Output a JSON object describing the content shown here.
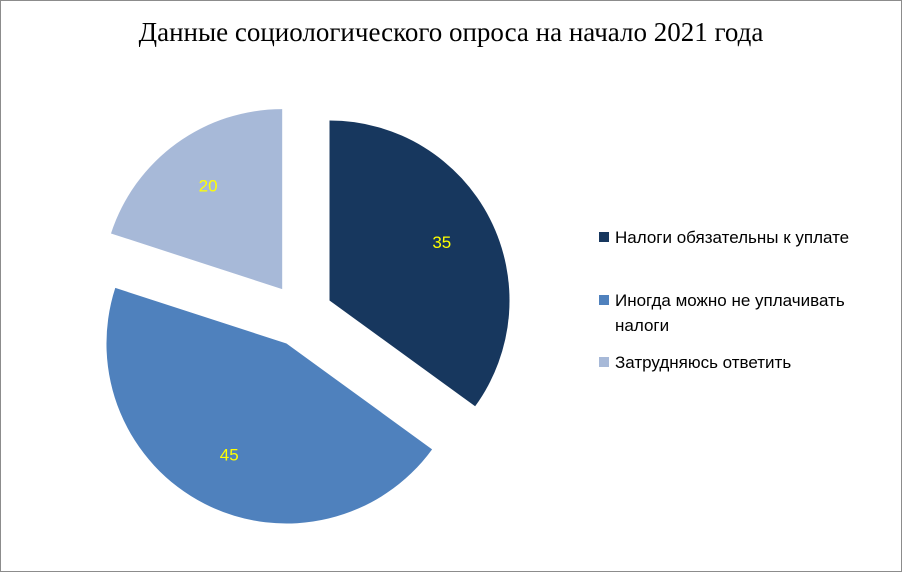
{
  "chart_data": {
    "type": "pie",
    "title": "Данные социологического опроса на начало 2021 года",
    "categories": [
      "Налоги обязательны к уплате",
      "Иногда можно не уплачивать налоги",
      "Затрудняюсь ответить"
    ],
    "values": [
      35,
      45,
      20
    ],
    "value_labels": [
      "35",
      "45",
      "20"
    ],
    "colors": [
      "#17375E",
      "#4F81BD",
      "#A7B9D8"
    ],
    "label_color": "#FFFF00",
    "exploded": true,
    "legend_position": "right"
  }
}
